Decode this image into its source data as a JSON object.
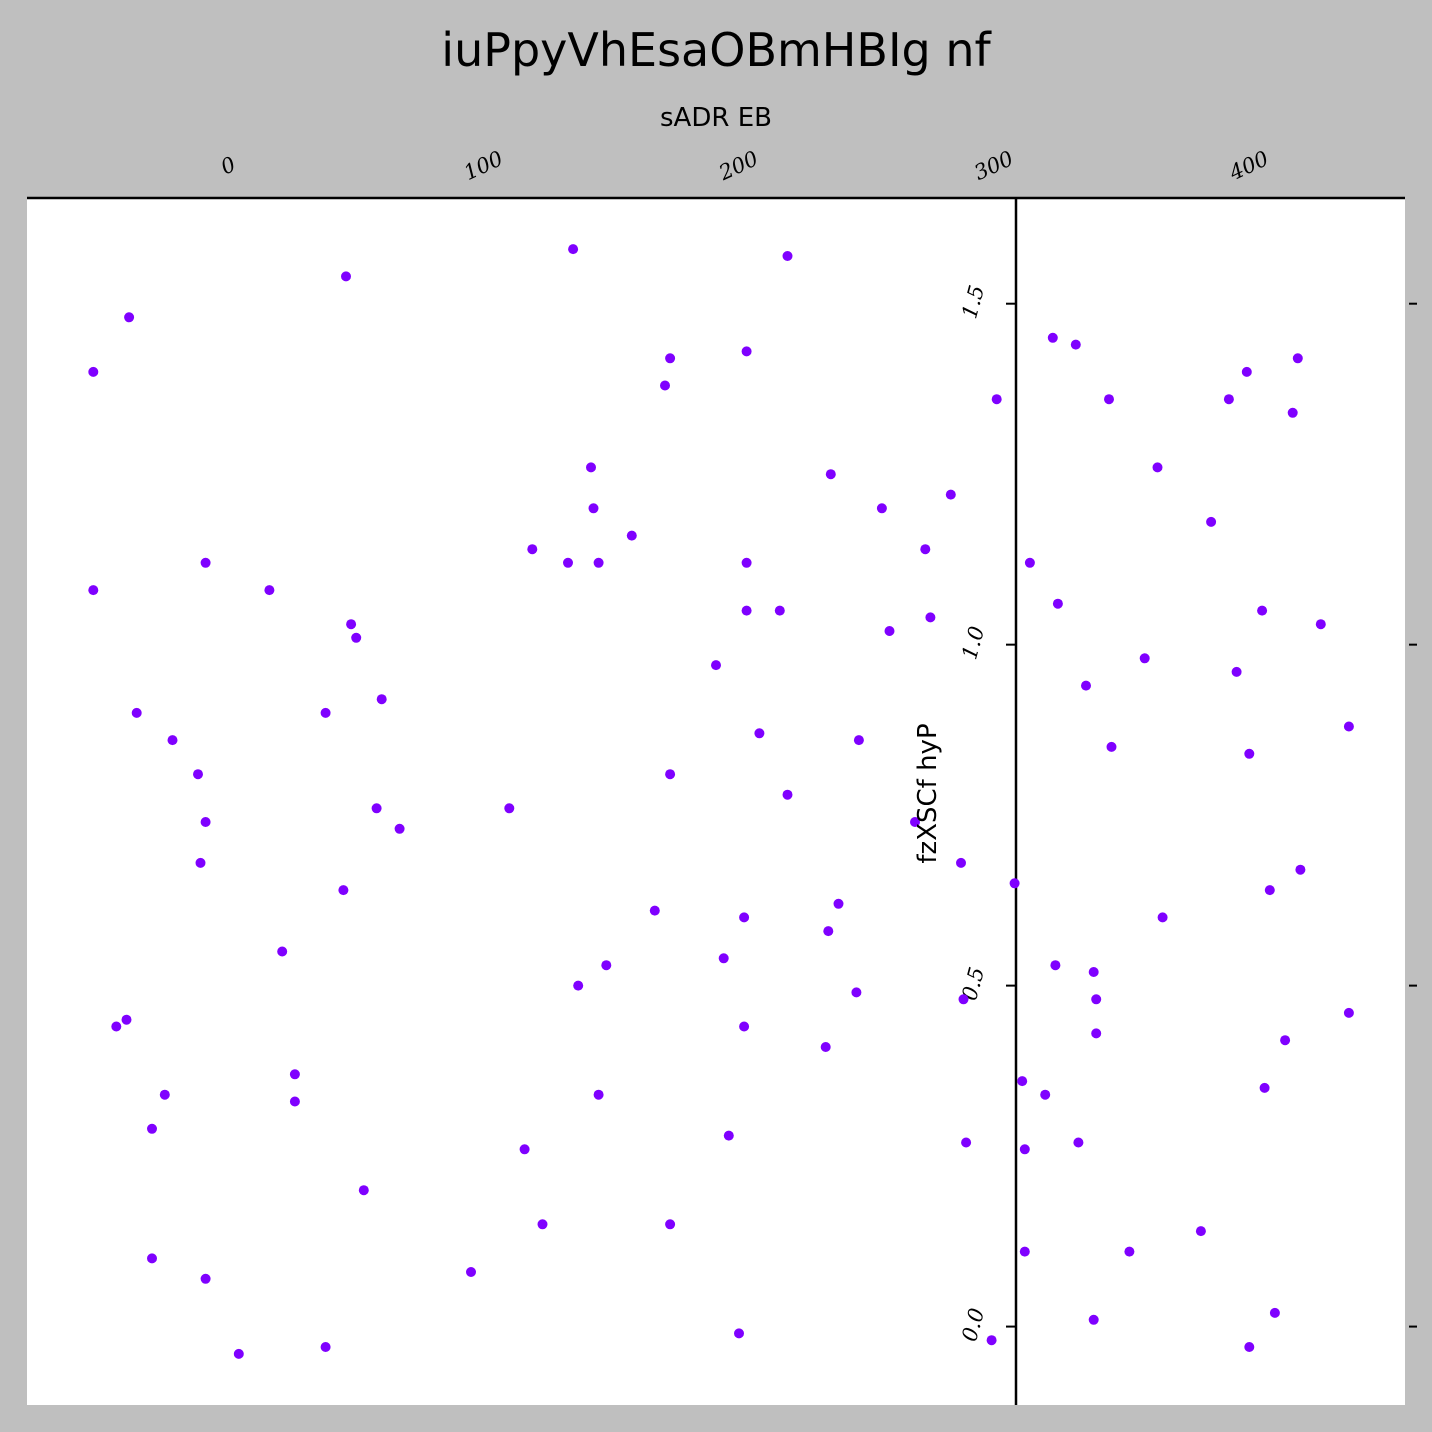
{
  "chart_data": {
    "type": "scatter",
    "title": "iuPpyVhEsaOBmHBIg nf",
    "xlabel": "sADR EB",
    "ylabel": "fzXSCf hyP",
    "xlim": [
      -80,
      460
    ],
    "ylim": [
      -0.115,
      1.655
    ],
    "x_ticks": [
      0,
      100,
      200,
      300,
      400
    ],
    "x_tick_labels": [
      "0",
      "100",
      "200",
      "300",
      "400"
    ],
    "y_ticks": [
      0.0,
      0.5,
      1.0,
      1.5
    ],
    "y_tick_labels": [
      "0.0",
      "0.5",
      "1.0",
      "1.5"
    ],
    "x_axis_position": "top",
    "y_axis_position": "crosses at x≈308",
    "grid": false,
    "legend": "none",
    "marker_color": "#7f00ff",
    "background_color": "#bfbfbf",
    "plot_background_color": "#ffffff",
    "series": [
      {
        "points": [
          [
            -54,
            1.4
          ],
          [
            -40,
            1.48
          ],
          [
            -54,
            1.08
          ],
          [
            -10,
            1.12
          ],
          [
            15,
            1.08
          ],
          [
            45,
            1.54
          ],
          [
            134,
            1.58
          ],
          [
            218,
            1.57
          ],
          [
            172,
            1.42
          ],
          [
            170,
            1.38
          ],
          [
            202,
            1.43
          ],
          [
            300,
            1.36
          ],
          [
            141,
            1.26
          ],
          [
            142,
            1.2
          ],
          [
            157,
            1.16
          ],
          [
            118,
            1.14
          ],
          [
            132,
            1.12
          ],
          [
            144,
            1.12
          ],
          [
            202,
            1.12
          ],
          [
            235,
            1.25
          ],
          [
            255,
            1.2
          ],
          [
            282,
            1.22
          ],
          [
            272,
            1.14
          ],
          [
            274,
            1.04
          ],
          [
            258,
            1.02
          ],
          [
            215,
            1.05
          ],
          [
            202,
            1.05
          ],
          [
            190,
            0.97
          ],
          [
            47,
            1.03
          ],
          [
            49,
            1.01
          ],
          [
            59,
            0.92
          ],
          [
            37,
            0.9
          ],
          [
            -37,
            0.9
          ],
          [
            -23,
            0.86
          ],
          [
            -13,
            0.81
          ],
          [
            -10,
            0.74
          ],
          [
            -12,
            0.68
          ],
          [
            57,
            0.76
          ],
          [
            66,
            0.73
          ],
          [
            109,
            0.76
          ],
          [
            172,
            0.81
          ],
          [
            207,
            0.87
          ],
          [
            246,
            0.86
          ],
          [
            218,
            0.78
          ],
          [
            268,
            0.74
          ],
          [
            286,
            0.68
          ],
          [
            307,
            0.65
          ],
          [
            44,
            0.64
          ],
          [
            20,
            0.55
          ],
          [
            -45,
            0.44
          ],
          [
            -41,
            0.45
          ],
          [
            -26,
            0.34
          ],
          [
            -31,
            0.29
          ],
          [
            25,
            0.37
          ],
          [
            25,
            0.33
          ],
          [
            166,
            0.61
          ],
          [
            201,
            0.6
          ],
          [
            238,
            0.62
          ],
          [
            234,
            0.58
          ],
          [
            193,
            0.54
          ],
          [
            147,
            0.53
          ],
          [
            136,
            0.5
          ],
          [
            245,
            0.49
          ],
          [
            287,
            0.48
          ],
          [
            201,
            0.44
          ],
          [
            233,
            0.41
          ],
          [
            144,
            0.34
          ],
          [
            115,
            0.26
          ],
          [
            195,
            0.28
          ],
          [
            288,
            0.27
          ],
          [
            52,
            0.2
          ],
          [
            122,
            0.15
          ],
          [
            172,
            0.15
          ],
          [
            -31,
            0.1
          ],
          [
            -10,
            0.07
          ],
          [
            94,
            0.08
          ],
          [
            3,
            -0.04
          ],
          [
            37,
            -0.03
          ],
          [
            199,
            -0.01
          ],
          [
            298,
            -0.02
          ],
          [
            313,
            1.12
          ],
          [
            322,
            1.45
          ],
          [
            331,
            1.44
          ],
          [
            344,
            1.36
          ],
          [
            324,
            1.06
          ],
          [
            335,
            0.94
          ],
          [
            345,
            0.85
          ],
          [
            363,
            1.26
          ],
          [
            358,
            0.98
          ],
          [
            384,
            1.18
          ],
          [
            391,
            1.36
          ],
          [
            398,
            1.4
          ],
          [
            418,
            1.42
          ],
          [
            416,
            1.34
          ],
          [
            404,
            1.05
          ],
          [
            427,
            1.03
          ],
          [
            394,
            0.96
          ],
          [
            399,
            0.84
          ],
          [
            438,
            0.88
          ],
          [
            419,
            0.67
          ],
          [
            407,
            0.64
          ],
          [
            365,
            0.6
          ],
          [
            323,
            0.53
          ],
          [
            338,
            0.52
          ],
          [
            339,
            0.48
          ],
          [
            339,
            0.43
          ],
          [
            310,
            0.36
          ],
          [
            319,
            0.34
          ],
          [
            332,
            0.27
          ],
          [
            311,
            0.26
          ],
          [
            311,
            0.11
          ],
          [
            352,
            0.11
          ],
          [
            380,
            0.14
          ],
          [
            338,
            0.01
          ],
          [
            399,
            -0.03
          ],
          [
            409,
            0.02
          ],
          [
            413,
            0.42
          ],
          [
            405,
            0.35
          ],
          [
            438,
            0.46
          ]
        ]
      }
    ]
  }
}
